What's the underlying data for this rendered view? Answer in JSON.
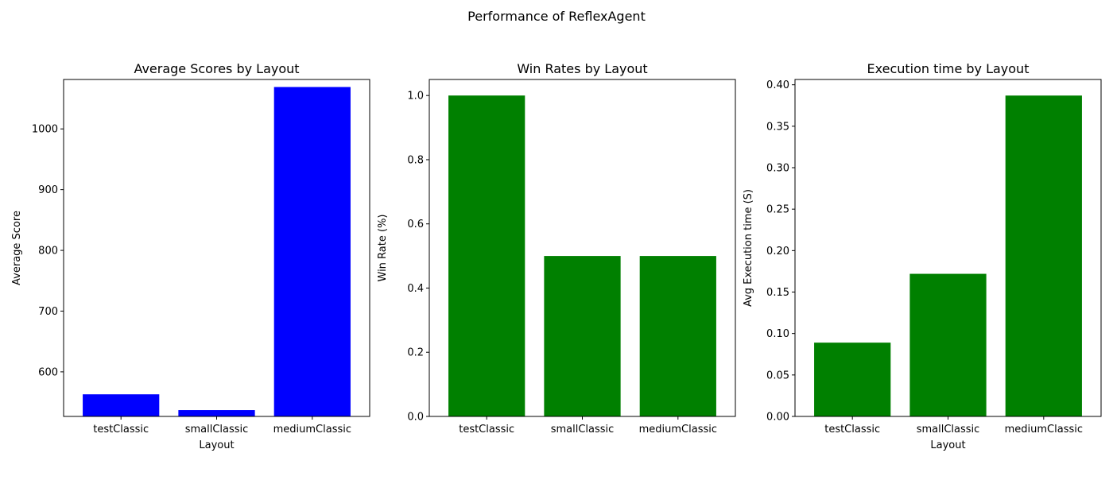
{
  "figure": {
    "suptitle": "Performance of ReflexAgent"
  },
  "chart_data": [
    {
      "type": "bar",
      "title": "Average Scores by Layout",
      "xlabel": "Layout",
      "ylabel": "Average Score",
      "categories": [
        "testClassic",
        "smallClassic",
        "mediumClassic"
      ],
      "values": [
        563,
        537,
        1069
      ],
      "ylim": [
        526.6,
        1081.4
      ],
      "yticks": [
        600,
        700,
        800,
        900,
        1000
      ],
      "ytick_labels": [
        "600",
        "700",
        "800",
        "900",
        "1000"
      ],
      "color": "#0000ff",
      "grid": false
    },
    {
      "type": "bar",
      "title": "Win Rates by Layout",
      "xlabel": "",
      "ylabel": "Win Rate (%)",
      "categories": [
        "testClassic",
        "smallClassic",
        "mediumClassic"
      ],
      "values": [
        1.0,
        0.5,
        0.5
      ],
      "ylim": [
        0,
        1.05
      ],
      "yticks": [
        0.0,
        0.2,
        0.4,
        0.6,
        0.8,
        1.0
      ],
      "ytick_labels": [
        "0.0",
        "0.2",
        "0.4",
        "0.6",
        "0.8",
        "1.0"
      ],
      "color": "#008000",
      "grid": false
    },
    {
      "type": "bar",
      "title": "Execution time by Layout",
      "xlabel": "Layout",
      "ylabel": "Avg Execution time (S)",
      "categories": [
        "testClassic",
        "smallClassic",
        "mediumClassic"
      ],
      "values": [
        0.089,
        0.172,
        0.387
      ],
      "ylim": [
        0,
        0.4064
      ],
      "yticks": [
        0.0,
        0.05,
        0.1,
        0.15,
        0.2,
        0.25,
        0.3,
        0.35,
        0.4
      ],
      "ytick_labels": [
        "0.00",
        "0.05",
        "0.10",
        "0.15",
        "0.20",
        "0.25",
        "0.30",
        "0.35",
        "0.40"
      ],
      "color": "#008000",
      "grid": false
    }
  ]
}
